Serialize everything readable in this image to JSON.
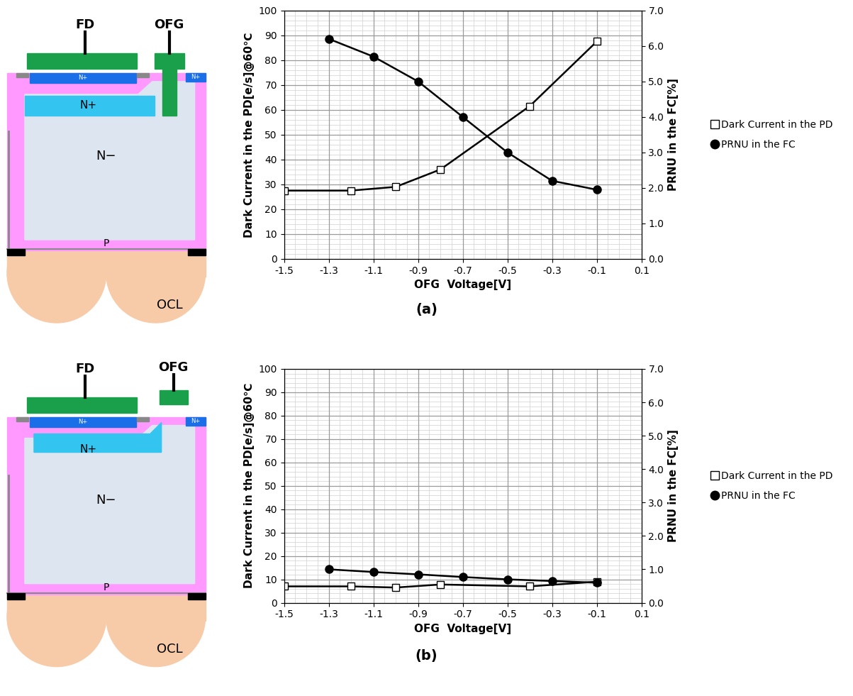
{
  "chart_data": [
    {
      "type": "line",
      "xlabel": "OFG  Voltage[V]",
      "ylabel": "Dark Current in the PD[e/s]@60℃",
      "y2label": "PRNU in the FC[%]",
      "xlim": [
        -1.5,
        0.1
      ],
      "xticks": [
        -1.5,
        -1.3,
        -1.1,
        -0.9,
        -0.7,
        -0.5,
        -0.3,
        -0.1,
        0.1
      ],
      "ylim": [
        0,
        100
      ],
      "yticks": [
        0,
        10,
        20,
        30,
        40,
        50,
        60,
        70,
        80,
        90,
        100
      ],
      "y2lim": [
        0,
        7
      ],
      "y2ticks": [
        {
          "value": 0,
          "label": "0.0"
        },
        {
          "value": 1,
          "label": "1.0"
        },
        {
          "value": 2,
          "label": "2.0"
        },
        {
          "value": 3,
          "label": "3.0"
        },
        {
          "value": 4,
          "label": "4.0"
        },
        {
          "value": 5,
          "label": "5.0"
        },
        {
          "value": 6,
          "label": "6.0"
        },
        {
          "value": 7,
          "label": "7.0"
        }
      ],
      "grid": true,
      "legend": "right",
      "series": [
        {
          "name": "Dark Current in the PD",
          "color": "#000000",
          "marker": "square_open",
          "line_style": "solid",
          "x": [
            -1.5,
            -1.2,
            -1.0,
            -0.8,
            -0.4,
            -0.1
          ],
          "values": [
            27.5,
            27.5,
            29,
            36,
            61.5,
            87.5
          ]
        },
        {
          "name": "PRNU in the FC",
          "color": "#000000",
          "marker": "circle",
          "line_style": "solid",
          "axis": "y2",
          "x": [
            -1.3,
            -1.1,
            -0.9,
            -0.7,
            -0.5,
            -0.3,
            -0.1
          ],
          "values": [
            6.2,
            5.7,
            5.0,
            4.0,
            3.0,
            2.2,
            1.95
          ]
        }
      ]
    },
    {
      "type": "line",
      "xlabel": "OFG  Voltage[V]",
      "ylabel": "Dark Current in the PD[e/s]@60℃",
      "y2label": "PRNU in the FC[%]",
      "xlim": [
        -1.5,
        0.1
      ],
      "xticks": [
        -1.5,
        -1.3,
        -1.1,
        -0.9,
        -0.7,
        -0.5,
        -0.3,
        -0.1,
        0.1
      ],
      "ylim": [
        0,
        100
      ],
      "yticks": [
        0,
        10,
        20,
        30,
        40,
        50,
        60,
        70,
        80,
        90,
        100
      ],
      "y2lim": [
        0,
        7
      ],
      "y2ticks": [
        {
          "value": 0,
          "label": "0.0"
        },
        {
          "value": 1,
          "label": "1.0"
        },
        {
          "value": 2,
          "label": "2.0"
        },
        {
          "value": 3,
          "label": "3.0"
        },
        {
          "value": 4,
          "label": "4.0"
        },
        {
          "value": 5,
          "label": "5.0"
        },
        {
          "value": 6,
          "label": "6.0"
        },
        {
          "value": 7,
          "label": "7.0"
        }
      ],
      "grid": true,
      "legend": "right",
      "series": [
        {
          "name": "Dark Current in the PD",
          "color": "#000000",
          "marker": "square_open",
          "line_style": "solid",
          "x": [
            -1.5,
            -1.2,
            -1.0,
            -0.8,
            -0.4,
            -0.1
          ],
          "values": [
            7,
            7,
            6.5,
            7.8,
            7,
            9
          ]
        },
        {
          "name": "PRNU in the FC",
          "color": "#000000",
          "marker": "circle",
          "line_style": "solid",
          "axis": "y2",
          "x": [
            -1.3,
            -1.1,
            -0.9,
            -0.7,
            -0.5,
            -0.3,
            -0.1
          ],
          "values": [
            1.0,
            0.92,
            0.85,
            0.77,
            0.7,
            0.65,
            0.6
          ]
        }
      ]
    }
  ],
  "panels": [
    {
      "label": "(a)",
      "diagram": {
        "gate": "FD",
        "ofg": "OFG",
        "surface_n": "N+",
        "buried_n": "N+",
        "drain": "N+",
        "epi": "N−",
        "substrate": "P",
        "lens": "OCL"
      }
    },
    {
      "label": "(b)",
      "diagram": {
        "gate": "FD",
        "ofg": "OFG",
        "surface_n": "N+",
        "buried_n": "N+",
        "drain": "N+",
        "epi": "N−",
        "substrate": "P",
        "lens": "OCL"
      }
    }
  ]
}
